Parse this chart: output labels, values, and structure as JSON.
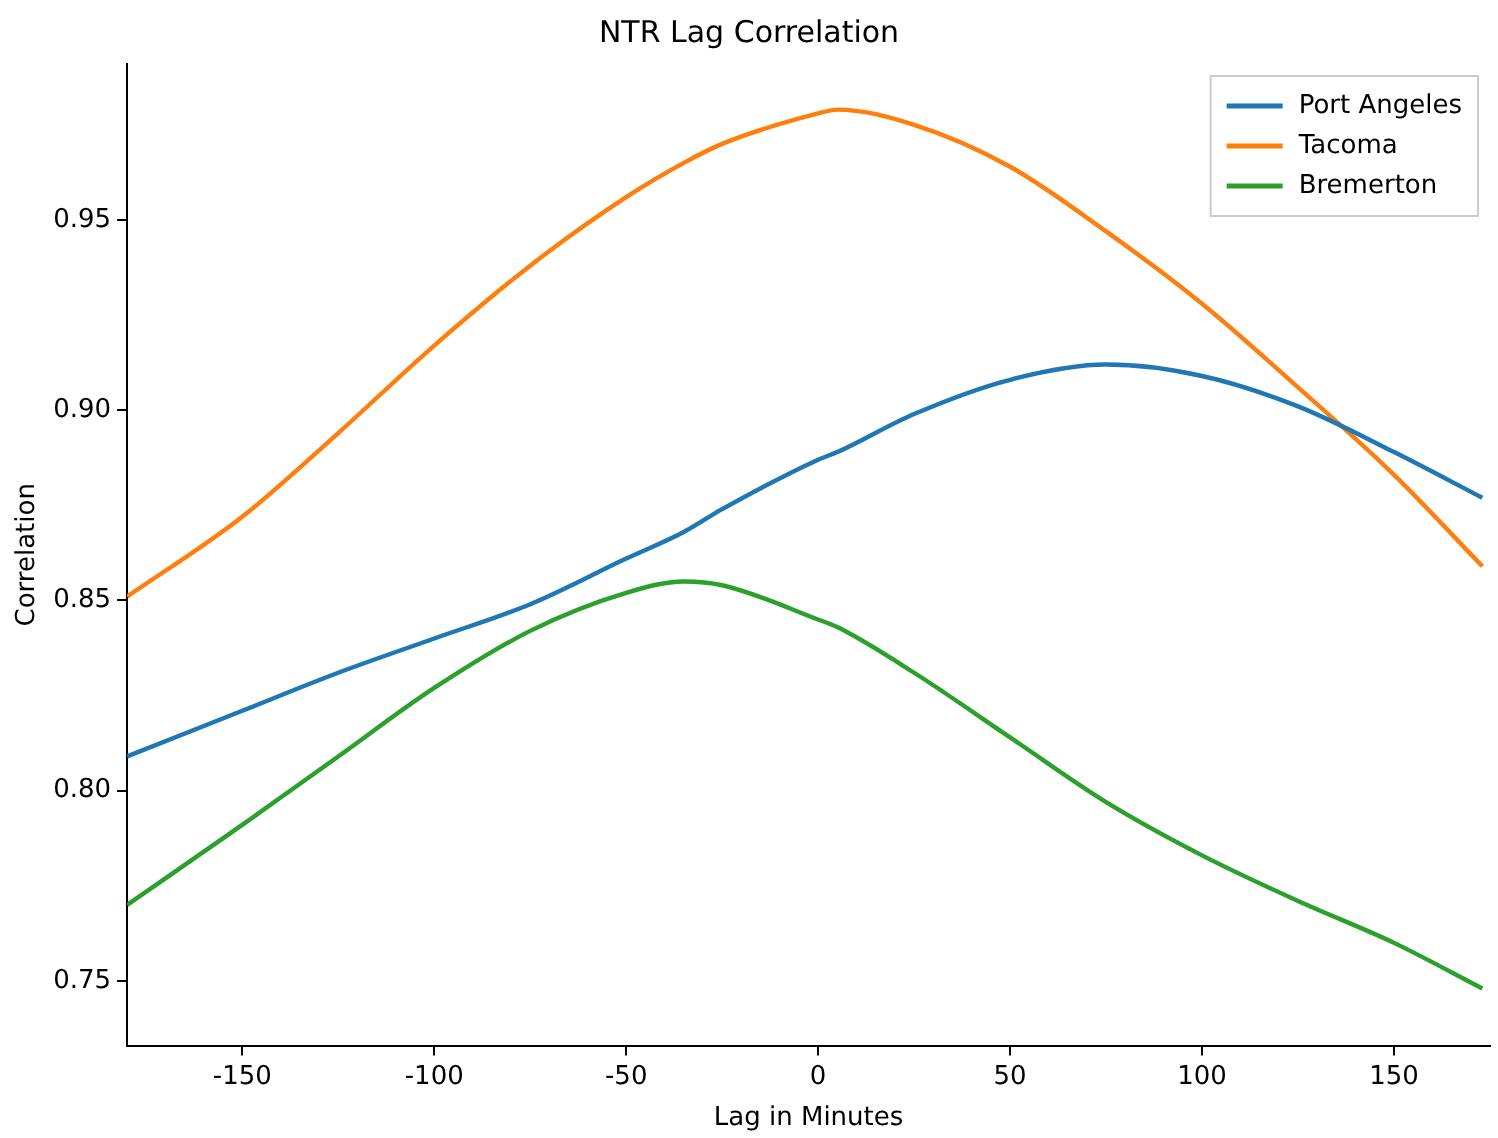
{
  "chart_data": {
    "type": "line",
    "title": "NTR Lag Correlation",
    "xlabel": "Lag in Minutes",
    "ylabel": "Correlation",
    "x": [
      -180,
      -150,
      -125,
      -100,
      -75,
      -50,
      -35,
      -25,
      0,
      5,
      25,
      50,
      75,
      100,
      125,
      150,
      173
    ],
    "series": [
      {
        "name": "Port Angeles",
        "color": "#1f77b4",
        "values": [
          0.809,
          0.821,
          0.831,
          0.84,
          0.849,
          0.861,
          0.868,
          0.874,
          0.887,
          0.889,
          0.899,
          0.908,
          0.912,
          0.909,
          0.901,
          0.889,
          0.877
        ]
      },
      {
        "name": "Tacoma",
        "color": "#ff7f0e",
        "values": [
          0.851,
          0.872,
          0.894,
          0.917,
          0.938,
          0.956,
          0.965,
          0.97,
          0.978,
          0.979,
          0.975,
          0.964,
          0.947,
          0.928,
          0.906,
          0.883,
          0.859
        ]
      },
      {
        "name": "Bremerton",
        "color": "#2ca02c",
        "values": [
          0.77,
          0.791,
          0.809,
          0.827,
          0.842,
          0.852,
          0.855,
          0.854,
          0.845,
          0.843,
          0.831,
          0.814,
          0.797,
          0.783,
          0.771,
          0.76,
          0.748
        ]
      }
    ],
    "xlim": [
      -180,
      175
    ],
    "xticks": [
      -150,
      -100,
      -50,
      0,
      50,
      100,
      150
    ],
    "ylim": [
      0.733,
      0.991
    ],
    "yticks": [
      {
        "value": 0.75,
        "label": "0.75"
      },
      {
        "value": 0.8,
        "label": "0.80"
      },
      {
        "value": 0.85,
        "label": "0.85"
      },
      {
        "value": 0.9,
        "label": "0.90"
      },
      {
        "value": 0.95,
        "label": "0.95"
      }
    ],
    "grid": false,
    "legend": "top right",
    "marker": "none",
    "line_style": "solid"
  }
}
